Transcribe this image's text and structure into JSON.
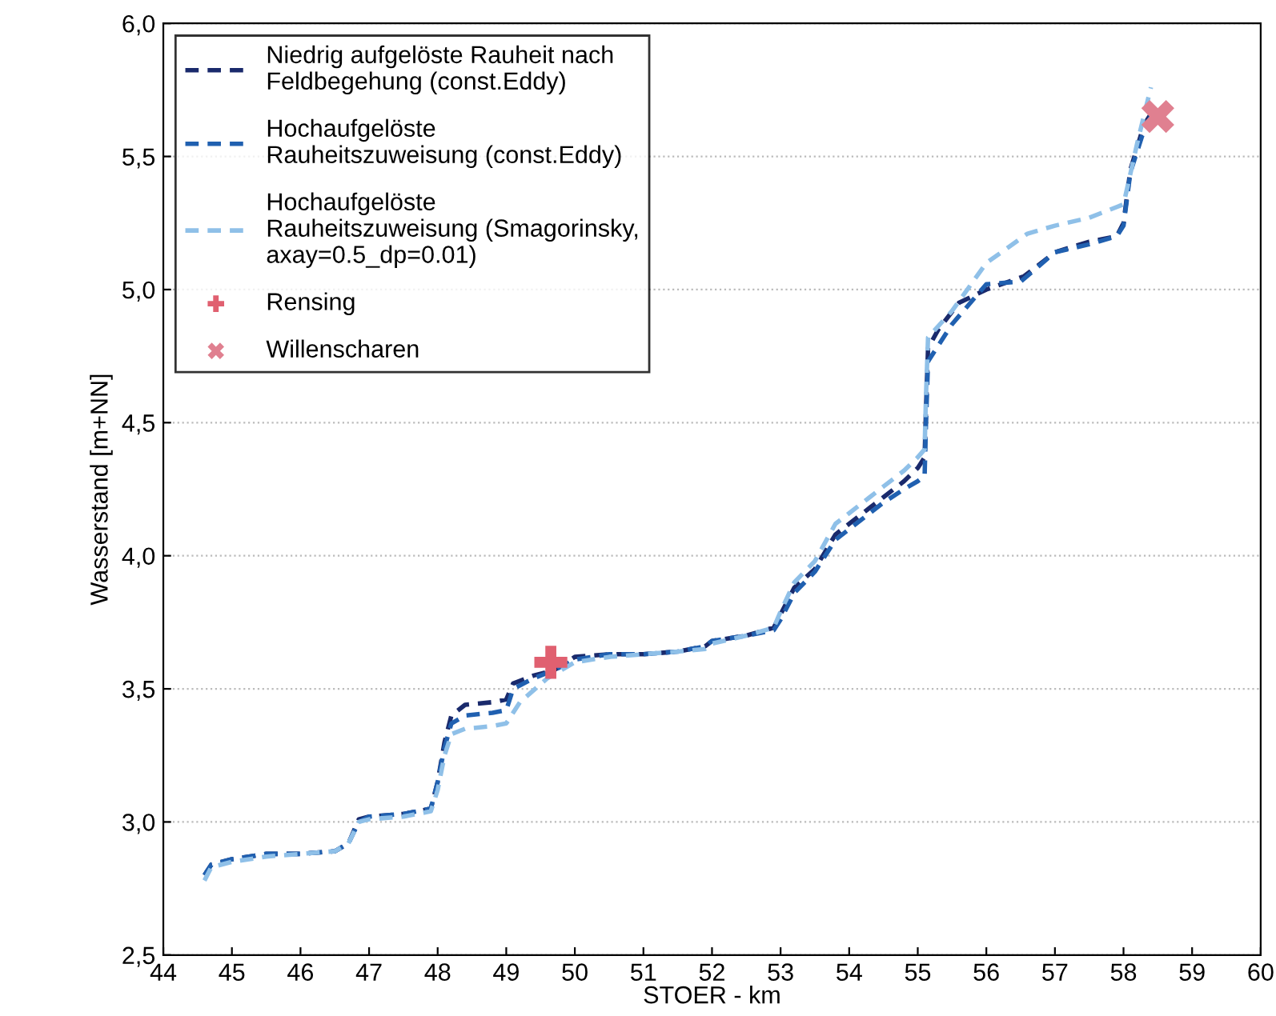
{
  "chart_data": {
    "type": "line",
    "xlabel": "STOER - km",
    "ylabel": "Wasserstand [m+NN]",
    "xlim": [
      44,
      60
    ],
    "xticks": [
      44,
      45,
      46,
      47,
      48,
      49,
      50,
      51,
      52,
      53,
      54,
      55,
      56,
      57,
      58,
      59,
      60
    ],
    "ylim": [
      2.5,
      6.0
    ],
    "yticks": [
      {
        "value": 2.5,
        "label": "2,5"
      },
      {
        "value": 3.0,
        "label": "3,0"
      },
      {
        "value": 3.5,
        "label": "3,5"
      },
      {
        "value": 4.0,
        "label": "4,0"
      },
      {
        "value": 4.5,
        "label": "4,5"
      },
      {
        "value": 5.0,
        "label": "5,0"
      },
      {
        "value": 5.5,
        "label": "5,5"
      },
      {
        "value": 6.0,
        "label": "6,0"
      }
    ],
    "grid": "y",
    "legend": "top left",
    "line_style": "dashed",
    "series": [
      {
        "name": "Niedrig aufgelöste Rauheit nach\nFeldbegehung (const.Eddy)",
        "color": "#1a2a6c",
        "x": [
          44.6,
          44.7,
          45.0,
          45.5,
          46.0,
          46.5,
          46.7,
          46.85,
          47.0,
          47.5,
          47.9,
          48.0,
          48.1,
          48.2,
          48.4,
          48.8,
          49.0,
          49.1,
          49.4,
          49.7,
          50.0,
          50.5,
          51.0,
          51.5,
          51.9,
          52.0,
          52.5,
          52.9,
          53.0,
          53.2,
          53.5,
          53.8,
          54.0,
          54.3,
          54.5,
          54.8,
          55.0,
          55.1,
          55.12,
          55.15,
          55.3,
          55.6,
          56.0,
          56.55,
          57.0,
          57.5,
          57.9,
          58.0,
          58.1,
          58.3,
          58.4
        ],
        "values": [
          2.8,
          2.84,
          2.86,
          2.88,
          2.88,
          2.89,
          2.92,
          3.01,
          3.02,
          3.03,
          3.05,
          3.15,
          3.3,
          3.4,
          3.44,
          3.45,
          3.46,
          3.52,
          3.55,
          3.57,
          3.62,
          3.63,
          3.63,
          3.64,
          3.66,
          3.68,
          3.7,
          3.73,
          3.78,
          3.88,
          3.95,
          4.08,
          4.12,
          4.18,
          4.22,
          4.28,
          4.33,
          4.37,
          4.55,
          4.78,
          4.85,
          4.95,
          5.0,
          5.05,
          5.14,
          5.18,
          5.2,
          5.25,
          5.45,
          5.62,
          5.66
        ]
      },
      {
        "name": "Hochaufgelöste\nRauheitszuweisung (const.Eddy)",
        "color": "#2060b0",
        "x": [
          44.6,
          44.7,
          45.0,
          45.5,
          46.0,
          46.5,
          46.7,
          46.85,
          47.0,
          47.5,
          47.9,
          48.0,
          48.1,
          48.2,
          48.4,
          48.8,
          49.0,
          49.1,
          49.4,
          49.7,
          50.0,
          50.5,
          51.0,
          51.5,
          51.9,
          52.0,
          52.5,
          52.9,
          53.0,
          53.2,
          53.5,
          53.8,
          54.0,
          54.3,
          54.5,
          54.8,
          55.0,
          55.1,
          55.12,
          55.15,
          55.5,
          56.0,
          56.5,
          57.0,
          57.5,
          57.9,
          58.0,
          58.1,
          58.3,
          58.4
        ],
        "values": [
          2.8,
          2.84,
          2.86,
          2.88,
          2.88,
          2.89,
          2.92,
          3.0,
          3.02,
          3.03,
          3.05,
          3.15,
          3.28,
          3.37,
          3.4,
          3.41,
          3.42,
          3.5,
          3.54,
          3.57,
          3.61,
          3.63,
          3.63,
          3.64,
          3.66,
          3.68,
          3.7,
          3.72,
          3.76,
          3.86,
          3.94,
          4.06,
          4.1,
          4.16,
          4.2,
          4.25,
          4.28,
          4.3,
          4.5,
          4.73,
          4.87,
          5.02,
          5.03,
          5.14,
          5.17,
          5.2,
          5.24,
          5.44,
          5.6,
          5.65
        ]
      },
      {
        "name": "Hochaufgelöste\nRauheitszuweisung (Smagorinsky,\naxay=0.5_dp=0.01)",
        "color": "#8fc0e8",
        "x": [
          44.6,
          44.7,
          45.0,
          45.5,
          46.0,
          46.5,
          46.7,
          46.85,
          47.0,
          47.5,
          47.9,
          48.0,
          48.1,
          48.2,
          48.4,
          48.8,
          49.0,
          49.2,
          49.6,
          50.0,
          50.5,
          51.0,
          51.5,
          51.9,
          52.0,
          52.5,
          52.9,
          53.0,
          53.2,
          53.5,
          53.8,
          54.0,
          54.3,
          54.5,
          54.8,
          55.0,
          55.1,
          55.12,
          55.15,
          55.5,
          56.0,
          56.6,
          57.0,
          57.5,
          58.0,
          58.2,
          58.4
        ],
        "values": [
          2.78,
          2.83,
          2.85,
          2.87,
          2.88,
          2.89,
          2.92,
          3.0,
          3.01,
          3.02,
          3.04,
          3.12,
          3.25,
          3.33,
          3.35,
          3.36,
          3.37,
          3.45,
          3.54,
          3.6,
          3.62,
          3.63,
          3.64,
          3.65,
          3.67,
          3.7,
          3.73,
          3.79,
          3.9,
          3.98,
          4.12,
          4.16,
          4.22,
          4.26,
          4.32,
          4.37,
          4.4,
          4.6,
          4.82,
          4.92,
          5.1,
          5.21,
          5.24,
          5.27,
          5.32,
          5.55,
          5.76
        ]
      },
      {
        "name": "Rensing",
        "type": "scatter",
        "marker": "cross",
        "color": "#e06070",
        "x": [
          49.65
        ],
        "values": [
          3.6
        ]
      },
      {
        "name": "Willenscharen",
        "type": "scatter",
        "marker": "x",
        "color": "#e08090",
        "x": [
          58.5
        ],
        "values": [
          5.65
        ]
      }
    ]
  }
}
